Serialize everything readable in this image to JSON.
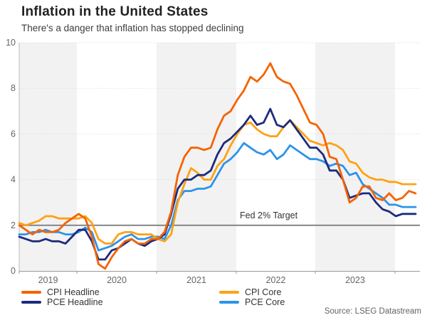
{
  "header": {
    "title": "Inflation in the United States",
    "subtitle": "There's a danger that inflation has stopped declining"
  },
  "chart_data": {
    "type": "line",
    "title": "Inflation in the United States",
    "subtitle": "There's a danger that inflation has stopped declining",
    "x_unit": "month",
    "x_start_month": "2019-04",
    "x_end_month": "2024-04",
    "x_tick_labels": [
      "2019",
      "2020",
      "2021",
      "2022",
      "2023"
    ],
    "ylim": [
      0,
      10
    ],
    "y_ticks": [
      0,
      2,
      4,
      6,
      8,
      10
    ],
    "grid": "faint dotted horizontal gridlines at 2,4,6,8,10; alternating light-gray/white vertical year bands",
    "legend_position": "bottom",
    "annotation": {
      "label": "Fed 2% Target",
      "value": 2
    },
    "series": [
      {
        "name": "CPI Headline",
        "color": "#f56301",
        "values": [
          2.0,
          1.8,
          1.6,
          1.8,
          1.7,
          1.7,
          1.8,
          2.1,
          2.3,
          2.5,
          2.3,
          1.5,
          0.3,
          0.1,
          0.6,
          1.0,
          1.3,
          1.4,
          1.2,
          1.2,
          1.4,
          1.4,
          1.7,
          2.6,
          4.2,
          5.0,
          5.4,
          5.4,
          5.3,
          5.4,
          6.2,
          6.8,
          7.0,
          7.5,
          7.9,
          8.5,
          8.3,
          8.6,
          9.1,
          8.5,
          8.3,
          8.2,
          7.7,
          7.1,
          6.5,
          6.4,
          6.0,
          5.0,
          4.9,
          4.0,
          3.0,
          3.2,
          3.7,
          3.7,
          3.2,
          3.1,
          3.4,
          3.1,
          3.2,
          3.5,
          3.4
        ]
      },
      {
        "name": "PCE Headline",
        "color": "#1d2b7d",
        "values": [
          1.5,
          1.4,
          1.3,
          1.3,
          1.4,
          1.3,
          1.3,
          1.2,
          1.5,
          1.8,
          1.8,
          1.3,
          0.5,
          0.5,
          0.9,
          1.0,
          1.2,
          1.4,
          1.2,
          1.1,
          1.3,
          1.4,
          1.6,
          2.5,
          3.6,
          4.0,
          4.0,
          4.2,
          4.2,
          4.4,
          5.1,
          5.6,
          5.8,
          6.1,
          6.4,
          6.8,
          6.4,
          6.5,
          7.1,
          6.4,
          6.3,
          6.6,
          6.2,
          5.8,
          5.4,
          5.4,
          5.1,
          4.4,
          4.4,
          4.0,
          3.2,
          3.3,
          3.4,
          3.4,
          3.0,
          2.7,
          2.6,
          2.4,
          2.5,
          2.5,
          2.5
        ]
      },
      {
        "name": "CPI Core",
        "color": "#ffa113",
        "values": [
          2.1,
          2.0,
          2.1,
          2.2,
          2.4,
          2.4,
          2.3,
          2.3,
          2.3,
          2.3,
          2.4,
          2.1,
          1.4,
          1.2,
          1.2,
          1.6,
          1.7,
          1.7,
          1.6,
          1.6,
          1.6,
          1.4,
          1.3,
          1.6,
          3.0,
          3.8,
          4.5,
          4.3,
          4.0,
          4.0,
          4.6,
          4.9,
          5.5,
          6.0,
          6.4,
          6.5,
          6.2,
          6.0,
          5.9,
          5.9,
          6.3,
          6.6,
          6.3,
          6.0,
          5.7,
          5.6,
          5.5,
          5.6,
          5.5,
          5.3,
          4.8,
          4.7,
          4.3,
          4.1,
          4.0,
          4.0,
          3.9,
          3.9,
          3.8,
          3.8,
          3.8
        ]
      },
      {
        "name": "PCE Core",
        "color": "#2e93e8",
        "values": [
          1.6,
          1.6,
          1.7,
          1.7,
          1.8,
          1.7,
          1.7,
          1.6,
          1.6,
          1.7,
          1.9,
          1.7,
          0.9,
          1.0,
          1.1,
          1.3,
          1.5,
          1.6,
          1.4,
          1.4,
          1.5,
          1.5,
          1.4,
          2.0,
          3.1,
          3.5,
          3.5,
          3.6,
          3.6,
          3.7,
          4.2,
          4.7,
          4.9,
          5.2,
          5.6,
          5.4,
          5.2,
          5.1,
          5.3,
          4.9,
          5.1,
          5.5,
          5.3,
          5.1,
          4.9,
          4.9,
          4.8,
          4.6,
          4.7,
          4.6,
          4.2,
          4.3,
          3.8,
          3.6,
          3.4,
          3.2,
          2.9,
          2.9,
          2.8,
          2.8,
          2.8
        ]
      }
    ]
  },
  "legend": {
    "items": [
      {
        "label": "CPI Headline",
        "color": "#f56301"
      },
      {
        "label": "PCE Headline",
        "color": "#1d2b7d"
      },
      {
        "label": "CPI Core",
        "color": "#ffa113"
      },
      {
        "label": "PCE Core",
        "color": "#2e93e8"
      }
    ]
  },
  "source": "Source: LSEG Datastream",
  "colors": {
    "band_gray": "#f2f2f2",
    "gridline": "#dcdcdc",
    "axis": "#999999",
    "axis_left": "#bbbbbb",
    "target_line": "#7f7f7f",
    "tick_text": "#666666"
  }
}
